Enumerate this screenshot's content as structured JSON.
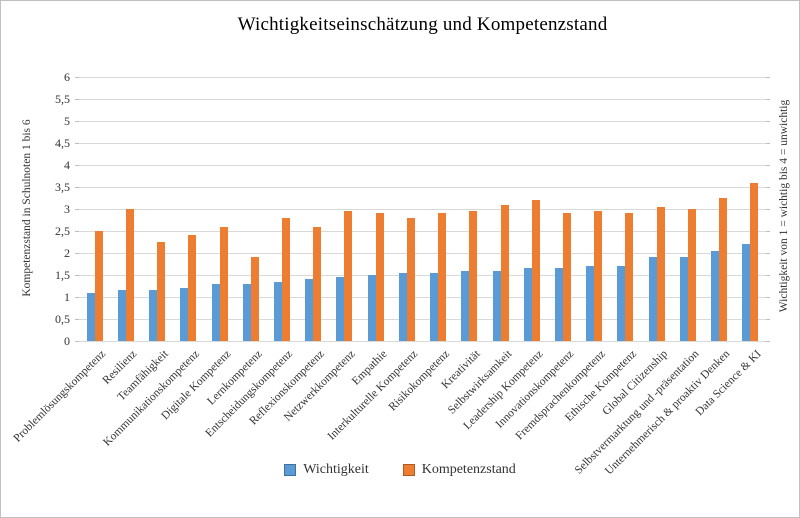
{
  "chart_data": {
    "type": "bar",
    "title": "Wichtigkeitseinschätzung und Kompetenzstand",
    "categories": [
      "Problemlösungskompetenz",
      "Resilienz",
      "Teamfähigkeit",
      "Kommunikationskompetenz",
      "Digitale Kompetenz",
      "Lernkompetenz",
      "Entscheidungskompetenz",
      "Reflexionskompetenz",
      "Netzwerkkompetenz",
      "Empathie",
      "Interkulturelle Kompetenz",
      "Risikokompetenz",
      "Kreativität",
      "Selbstwirksamkeit",
      "Leadership Kompetenz",
      "Innovationskompetenz",
      "Fremdsprachenkompetenz",
      "Ethische Kompetenz",
      "Global Citizenship",
      "Selbstvermarktung und -präsentation",
      "Unternehmerisch & proaktiv Denken",
      "Data Science & KI"
    ],
    "series": [
      {
        "name": "Wichtigkeit",
        "color": "#5B9BD5",
        "border_color": "#41719C",
        "values": [
          1.1,
          1.15,
          1.15,
          1.2,
          1.3,
          1.3,
          1.35,
          1.4,
          1.45,
          1.5,
          1.55,
          1.55,
          1.6,
          1.6,
          1.65,
          1.65,
          1.7,
          1.7,
          1.9,
          1.9,
          2.05,
          2.2
        ]
      },
      {
        "name": "Kompetenzstand",
        "color": "#ED7D31",
        "border_color": "#AE5A21",
        "values": [
          2.5,
          3.0,
          2.25,
          2.4,
          2.6,
          1.9,
          2.8,
          2.6,
          2.95,
          2.9,
          2.8,
          2.9,
          2.95,
          3.1,
          3.2,
          2.9,
          2.95,
          2.9,
          3.05,
          3.0,
          3.25,
          3.6
        ]
      }
    ],
    "y_axis": {
      "label": "Kompetenzstand in Schulnoten 1 bis 6",
      "min": 0,
      "max": 6,
      "step": 0.5,
      "tick_labels": [
        "0",
        "0,5",
        "1",
        "1,5",
        "2",
        "2,5",
        "3",
        "3,5",
        "4",
        "4,5",
        "5",
        "5,5",
        "6"
      ]
    },
    "y_axis_right": {
      "label": "Wichtigkeit von 1 = wichtig bis 4 = unwichtig"
    },
    "grid": true,
    "gridline_color": "#d9d9d9",
    "legend_position": "bottom",
    "xlabel": "",
    "ylabel": "Kompetenzstand in Schulnoten 1 bis 6"
  }
}
